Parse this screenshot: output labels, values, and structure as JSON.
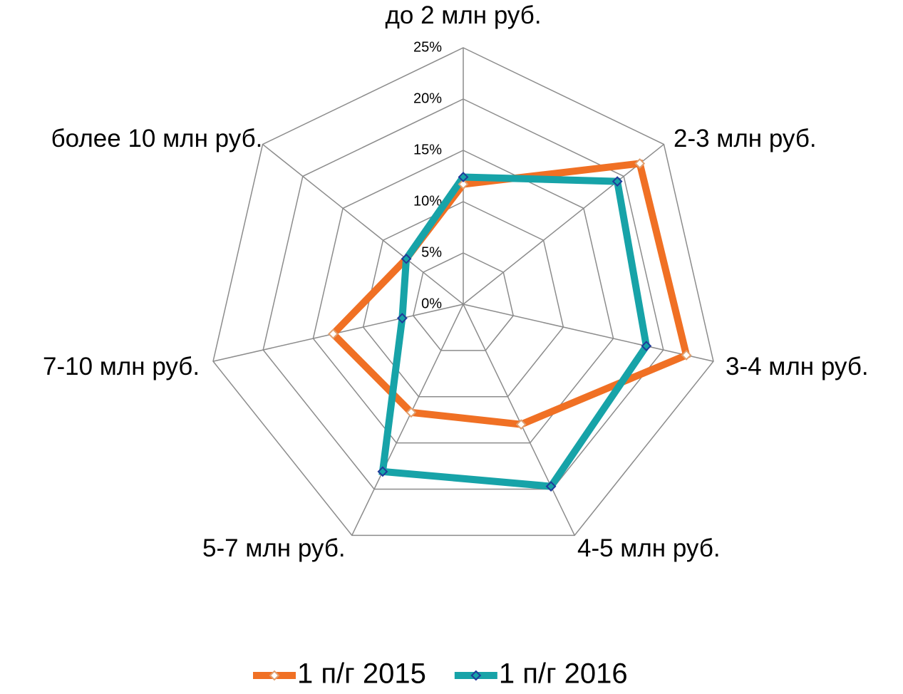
{
  "chart_data": {
    "type": "radar",
    "categories": [
      "до 2 млн руб.",
      "2-3 млн руб.",
      "3-4 млн руб.",
      "4-5 млн руб.",
      "5-7 млн руб.",
      "7-10 млн руб.",
      "более 10 млн руб."
    ],
    "series": [
      {
        "name": "1 п/г 2015",
        "color": "#f07024",
        "values": [
          11.7,
          22.0,
          22.3,
          13.0,
          11.7,
          13.0,
          7.1
        ]
      },
      {
        "name": "1 п/г 2016",
        "color": "#17a3a8",
        "values": [
          12.4,
          19.2,
          18.3,
          19.7,
          18.1,
          6.1,
          7.1
        ]
      }
    ],
    "ylim": [
      0,
      25
    ],
    "yticks": [
      {
        "value": 0,
        "label": "0%"
      },
      {
        "value": 5,
        "label": "5%"
      },
      {
        "value": 10,
        "label": "10%"
      },
      {
        "value": 15,
        "label": "15%"
      },
      {
        "value": 20,
        "label": "20%"
      },
      {
        "value": 25,
        "label": "25%"
      }
    ],
    "grid": true,
    "legend": "bottom"
  }
}
